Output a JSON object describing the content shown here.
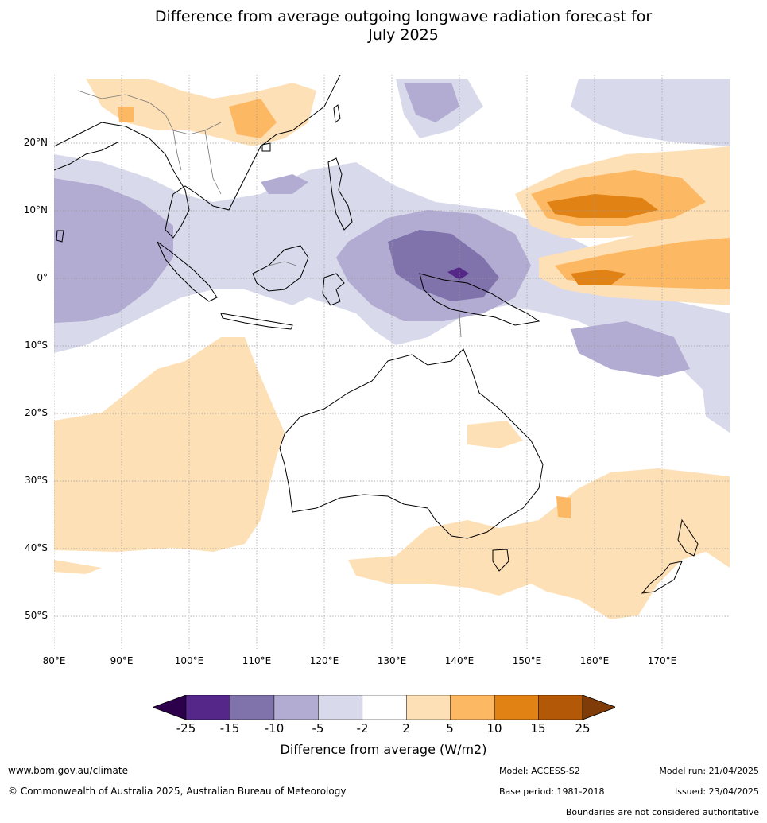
{
  "title_line1": "Difference from average outgoing longwave radiation forecast for",
  "title_line2": "July 2025",
  "map": {
    "lat_labels": [
      "20°N",
      "10°N",
      "0°",
      "10°S",
      "20°S",
      "30°S",
      "40°S",
      "50°S"
    ],
    "lon_labels": [
      "80°E",
      "90°E",
      "100°E",
      "110°E",
      "120°E",
      "130°E",
      "140°E",
      "150°E",
      "160°E",
      "170°E"
    ]
  },
  "colorbar": {
    "ticks": [
      "-25",
      "-15",
      "-10",
      "-5",
      "-2",
      "2",
      "5",
      "10",
      "15",
      "25"
    ],
    "colors": [
      "#2d004b",
      "#542788",
      "#8073ac",
      "#b2abd2",
      "#d8daeb",
      "#ffffff",
      "#fee0b6",
      "#fdb863",
      "#e08214",
      "#b35806",
      "#7f3b08"
    ],
    "label": "Difference from average (W/m2)"
  },
  "footer": {
    "website": "www.bom.gov.au/climate",
    "copyright": "© Commonwealth of Australia 2025, Australian Bureau of Meteorology",
    "model": "Model: ACCESS-S2",
    "base_period": "Base period: 1981-2018",
    "model_run": "Model run: 21/04/2025",
    "issued": "Issued: 23/04/2025",
    "disclaimer": "Boundaries are not considered authoritative"
  }
}
